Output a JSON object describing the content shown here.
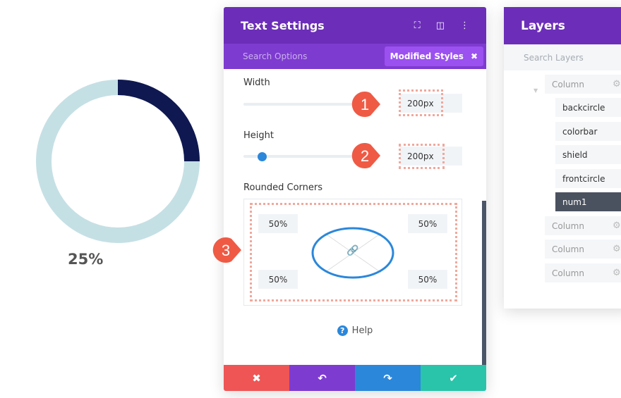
{
  "progress": {
    "percent": 25,
    "label": "25%",
    "colors": {
      "track": "#c5e0e5",
      "bar": "#0f1850"
    }
  },
  "panel": {
    "title": "Text Settings",
    "icons": [
      "fullscreen-icon",
      "split-view-icon",
      "more-icon"
    ],
    "search_placeholder": "Search Options",
    "modified_label": "Modified Styles",
    "width": {
      "label": "Width",
      "value": "200px"
    },
    "height": {
      "label": "Height",
      "value": "200px"
    },
    "corners": {
      "label": "Rounded Corners",
      "top_left": "50%",
      "top_right": "50%",
      "bottom_left": "50%",
      "bottom_right": "50%"
    },
    "help": "Help",
    "footer": [
      "cancel",
      "undo",
      "redo",
      "save"
    ],
    "colors": {
      "header": "#6c2eb9",
      "cancel": "#ef5555",
      "undo": "#7e3bd0",
      "redo": "#2b87da",
      "save": "#29c4a9"
    }
  },
  "callouts": [
    "1",
    "2",
    "3"
  ],
  "layers": {
    "title": "Layers",
    "search_placeholder": "Search Layers",
    "items": [
      {
        "label": "Column"
      },
      {
        "label": "backcircle"
      },
      {
        "label": "colorbar"
      },
      {
        "label": "shield"
      },
      {
        "label": "frontcircle"
      },
      {
        "label": "num1"
      },
      {
        "label": "Column"
      },
      {
        "label": "Column"
      },
      {
        "label": "Column"
      }
    ]
  }
}
